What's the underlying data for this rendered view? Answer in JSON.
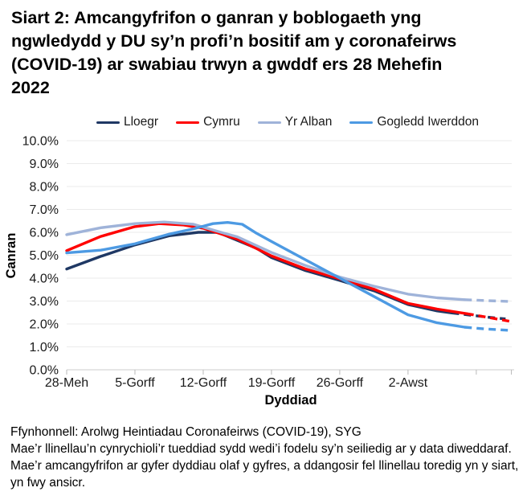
{
  "title_lines": [
    "Siart 2: Amcangyfrifon o ganran y boblogaeth yng",
    "ngwledydd y DU sy’n profi’n bositif am y coronafeirws",
    "(COVID-19) ar swabiau trwyn a gwddf ers 28 Mehefin",
    "2022"
  ],
  "colors": {
    "gridline": "#ebebeb",
    "axis_line": "#d6d6d6",
    "tick": "#b9b9b9",
    "axis_text": "#1a1a1a",
    "title_text": "#000000"
  },
  "chart_data": {
    "type": "line",
    "title": "Siart 2: Amcangyfrifon o ganran y boblogaeth yng ngwledydd y DU sy’n profi’n bositif am y coronafeirws (COVID-19) ar swabiau trwyn a gwddf ers 28 Mehefin 2022",
    "xlabel": "Dyddiad",
    "ylabel": "Canran",
    "ylim": [
      0,
      10
    ],
    "grid": "horizontal",
    "legend_position": "top",
    "y_tick_labels": [
      "0.0%",
      "1.0%",
      "2.0%",
      "3.0%",
      "4.0%",
      "5.0%",
      "6.0%",
      "7.0%",
      "8.0%",
      "9.0%",
      "10.0%"
    ],
    "x_unit": "days, day 0 = 28 Mehefin 2022",
    "x_ticks": [
      {
        "day": 0,
        "label": "28-Meh"
      },
      {
        "day": 7,
        "label": "5-Gorff"
      },
      {
        "day": 14,
        "label": "12-Gorff"
      },
      {
        "day": 21,
        "label": "19-Gorff"
      },
      {
        "day": 28,
        "label": "26-Gorff"
      },
      {
        "day": 35,
        "label": "2-Awst"
      },
      {
        "day": 42,
        "label": ""
      },
      {
        "day": 45.6,
        "label": ""
      }
    ],
    "series": [
      {
        "id": "lloegr",
        "name": "Lloegr",
        "color": "#1f3864",
        "dashed_from_day": 39.5,
        "points": [
          [
            0,
            4.4
          ],
          [
            3.5,
            4.95
          ],
          [
            7,
            5.45
          ],
          [
            10.5,
            5.85
          ],
          [
            13.5,
            6.0
          ],
          [
            15.5,
            6.0
          ],
          [
            17.5,
            5.65
          ],
          [
            19.5,
            5.3
          ],
          [
            21,
            4.9
          ],
          [
            24.5,
            4.33
          ],
          [
            28,
            3.9
          ],
          [
            31.5,
            3.45
          ],
          [
            35,
            2.85
          ],
          [
            38,
            2.57
          ],
          [
            39.5,
            2.48
          ],
          [
            41.5,
            2.38
          ],
          [
            43.5,
            2.28
          ],
          [
            45,
            2.22
          ]
        ]
      },
      {
        "id": "cymru",
        "name": "Cymru",
        "color": "#ff0000",
        "dashed_from_day": 41,
        "points": [
          [
            0,
            5.2
          ],
          [
            3.5,
            5.82
          ],
          [
            7,
            6.25
          ],
          [
            9.5,
            6.38
          ],
          [
            12,
            6.32
          ],
          [
            14,
            6.18
          ],
          [
            17.5,
            5.7
          ],
          [
            21,
            4.97
          ],
          [
            24.5,
            4.4
          ],
          [
            28,
            3.97
          ],
          [
            31.5,
            3.52
          ],
          [
            35,
            2.9
          ],
          [
            38,
            2.65
          ],
          [
            41,
            2.45
          ],
          [
            43,
            2.3
          ],
          [
            45.6,
            2.1
          ]
        ]
      },
      {
        "id": "yr-alban",
        "name": "Yr Alban",
        "color": "#9fb3d9",
        "dashed_from_day": 40.8,
        "points": [
          [
            0,
            5.9
          ],
          [
            3.5,
            6.2
          ],
          [
            7,
            6.38
          ],
          [
            10,
            6.45
          ],
          [
            13,
            6.35
          ],
          [
            16,
            5.98
          ],
          [
            17.5,
            5.8
          ],
          [
            21,
            5.12
          ],
          [
            24.5,
            4.55
          ],
          [
            28,
            4.05
          ],
          [
            31.5,
            3.65
          ],
          [
            35,
            3.3
          ],
          [
            38,
            3.14
          ],
          [
            40.8,
            3.06
          ],
          [
            43,
            3.02
          ],
          [
            45.6,
            2.98
          ]
        ]
      },
      {
        "id": "gogledd-iwerddon",
        "name": "Gogledd Iwerddon",
        "color": "#4d9ae3",
        "dashed_from_day": 40.8,
        "points": [
          [
            0,
            5.1
          ],
          [
            3.5,
            5.22
          ],
          [
            7,
            5.5
          ],
          [
            10.5,
            5.92
          ],
          [
            13,
            6.15
          ],
          [
            15,
            6.38
          ],
          [
            16.5,
            6.43
          ],
          [
            18,
            6.35
          ],
          [
            19.5,
            5.95
          ],
          [
            21,
            5.6
          ],
          [
            24.5,
            4.8
          ],
          [
            28,
            4.0
          ],
          [
            31.5,
            3.2
          ],
          [
            35,
            2.4
          ],
          [
            38,
            2.05
          ],
          [
            40.8,
            1.86
          ],
          [
            43,
            1.78
          ],
          [
            45.6,
            1.72
          ]
        ]
      }
    ]
  },
  "source_lines": [
    "Ffynhonnell: Arolwg Heintiadau Coronafeirws (COVID-19), SYG",
    "Mae’r llinellau’n cynrychioli’r tueddiad sydd wedi’i fodelu sy’n seiliedig ar y data diweddaraf.",
    "Mae’r amcangyfrifon ar gyfer dyddiau olaf y gyfres, a ddangosir fel llinellau toredig yn y siart,",
    "yn fwy ansicr."
  ]
}
